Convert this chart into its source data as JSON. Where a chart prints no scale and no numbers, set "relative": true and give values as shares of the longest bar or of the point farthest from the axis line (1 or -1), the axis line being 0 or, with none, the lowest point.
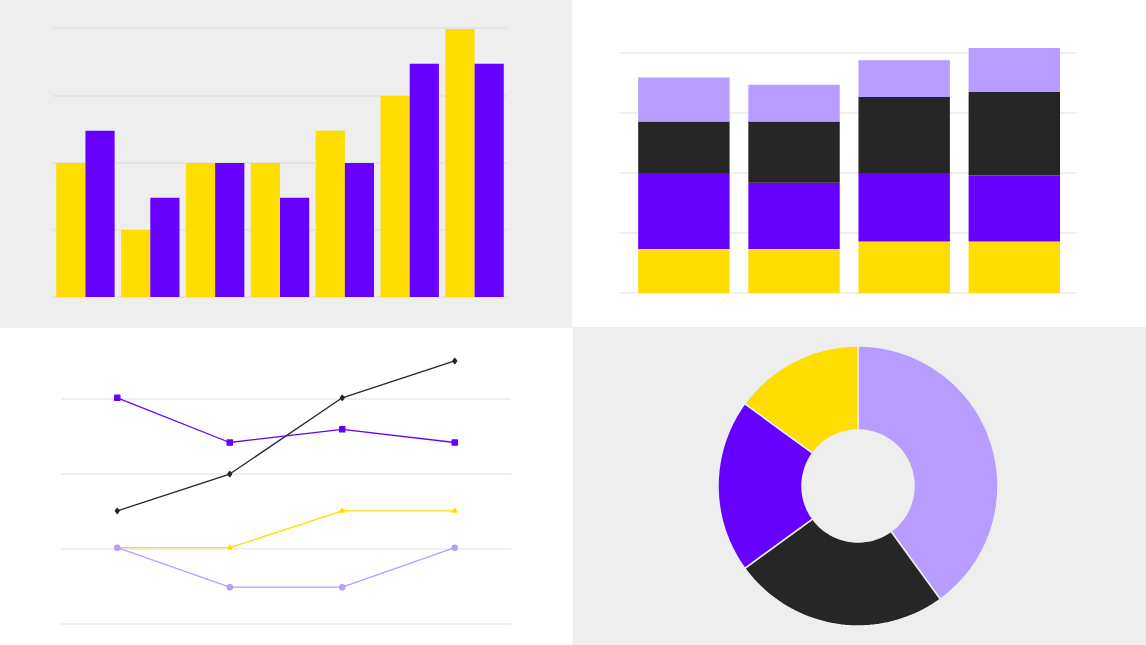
{
  "chart_data": [
    {
      "type": "bar",
      "relative": true,
      "grid": "y",
      "categories": [
        null,
        null,
        null,
        null,
        null,
        null,
        null
      ],
      "series": [
        {
          "color": "#ffdd00",
          "values": [
            0.5,
            0.25,
            0.5,
            0.5,
            0.62,
            0.75,
            1.0
          ]
        },
        {
          "color": "#6600ff",
          "values": [
            0.62,
            0.37,
            0.5,
            0.37,
            0.5,
            0.87,
            0.87
          ]
        }
      ]
    },
    {
      "type": "bar",
      "stacked": true,
      "relative": true,
      "grid": "y",
      "categories": [
        null,
        null,
        null,
        null
      ],
      "series": [
        {
          "color": "#ffdd00",
          "values": [
            0.18,
            0.18,
            0.21,
            0.21
          ]
        },
        {
          "color": "#6600ff",
          "values": [
            0.31,
            0.27,
            0.28,
            0.27
          ]
        },
        {
          "color": "#262626",
          "values": [
            0.21,
            0.25,
            0.31,
            0.34
          ]
        },
        {
          "color": "#b99cff",
          "values": [
            0.18,
            0.15,
            0.15,
            0.18
          ]
        }
      ]
    },
    {
      "type": "line",
      "relative": true,
      "grid": "y",
      "categories": [
        null,
        null,
        null,
        null
      ],
      "series": [
        {
          "color": "#262626",
          "marker": "diamond",
          "values": [
            0.43,
            0.57,
            0.86,
            1.0
          ]
        },
        {
          "color": "#6600ff",
          "marker": "square",
          "values": [
            0.86,
            0.69,
            0.74,
            0.69
          ]
        },
        {
          "color": "#ffdd00",
          "marker": "triangle",
          "values": [
            0.29,
            0.29,
            0.43,
            0.43
          ]
        },
        {
          "color": "#b99cff",
          "marker": "circle",
          "values": [
            0.29,
            0.14,
            0.14,
            0.29
          ]
        }
      ]
    },
    {
      "type": "donut",
      "categories": [
        null,
        null,
        null,
        null
      ],
      "values": [
        40,
        25,
        20,
        15
      ],
      "colors": [
        "#b99cff",
        "#262626",
        "#6600ff",
        "#ffdd00"
      ]
    }
  ]
}
